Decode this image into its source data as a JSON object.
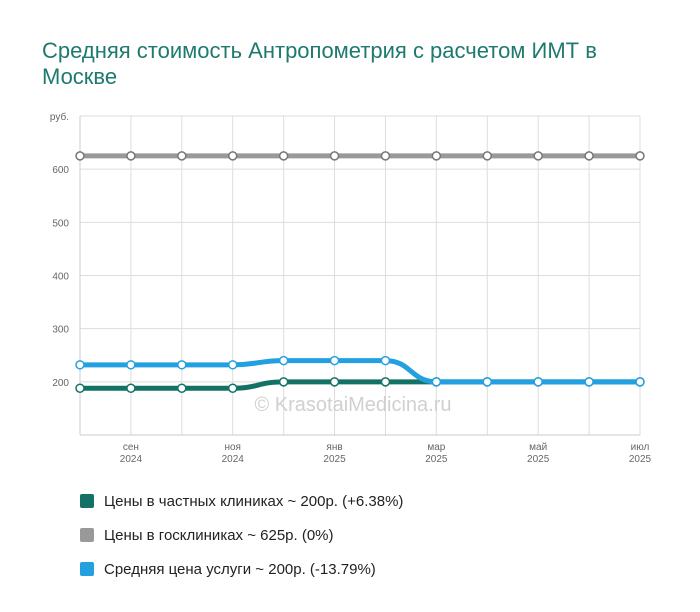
{
  "title": "Средняя стоимость Антропометрия с расчетом ИМТ в Москве",
  "watermark": "© KrasotaiMedicina.ru",
  "chart_data": {
    "type": "line",
    "y_unit": "руб.",
    "ylim": [
      100,
      700
    ],
    "y_ticks": [
      200,
      300,
      400,
      500,
      600
    ],
    "grid": true,
    "x_points": 12,
    "x_tick_labels": [
      {
        "index": 1,
        "month": "сен",
        "year": "2024"
      },
      {
        "index": 3,
        "month": "ноя",
        "year": "2024"
      },
      {
        "index": 5,
        "month": "янв",
        "year": "2025"
      },
      {
        "index": 7,
        "month": "мар",
        "year": "2025"
      },
      {
        "index": 9,
        "month": "май",
        "year": "2025"
      },
      {
        "index": 11,
        "month": "июл",
        "year": "2025"
      }
    ],
    "series": [
      {
        "name": "Цены в госклиниках ~ 625р. (0%)",
        "color": "#999999",
        "values": [
          625,
          625,
          625,
          625,
          625,
          625,
          625,
          625,
          625,
          625,
          625,
          625
        ]
      },
      {
        "name": "Цены в частных клиниках ~ 200р. (+6.38%)",
        "color": "#137265",
        "values": [
          188,
          188,
          188,
          188,
          200,
          200,
          200,
          200,
          200,
          200,
          200,
          200
        ]
      },
      {
        "name": "Средняя цена услуги ~ 200р. (-13.79%)",
        "color": "#22a0df",
        "values": [
          232,
          232,
          232,
          232,
          240,
          240,
          240,
          200,
          200,
          200,
          200,
          200
        ]
      }
    ]
  },
  "legend": [
    {
      "label": "Цены в частных клиниках ~ 200р. (+6.38%)",
      "color": "#137265"
    },
    {
      "label": "Цены в госклиниках ~ 625р. (0%)",
      "color": "#999999"
    },
    {
      "label": "Средняя цена услуги ~ 200р. (-13.79%)",
      "color": "#22a0df"
    }
  ]
}
